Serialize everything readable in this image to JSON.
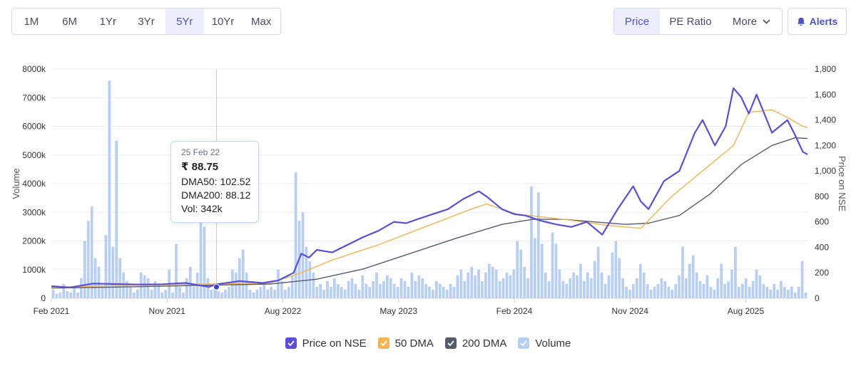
{
  "range_buttons": [
    "1M",
    "6M",
    "1Yr",
    "3Yr",
    "5Yr",
    "10Yr",
    "Max"
  ],
  "active_range": "5Yr",
  "view_tabs": {
    "price": "Price",
    "pe_ratio": "PE Ratio",
    "more": "More"
  },
  "alerts_label": "Alerts",
  "tooltip": {
    "date": "25 Feb 22",
    "price": "₹ 88.75",
    "dma50": "DMA50: 102.52",
    "dma200": "DMA200: 88.12",
    "vol": "Vol: 342k"
  },
  "legend": [
    {
      "label": "Price on NSE",
      "color": "#5a4fd6"
    },
    {
      "label": "50 DMA",
      "color": "#f2b552"
    },
    {
      "label": "200 DMA",
      "color": "#555c6b"
    },
    {
      "label": "Volume",
      "color": "#b8cff5"
    }
  ],
  "chart_data": {
    "type": "line",
    "xlabel": "",
    "ylabel_left": "Volume",
    "ylabel_right": "Price on NSE",
    "x_ticks": [
      "Feb 2021",
      "Nov 2021",
      "Aug 2022",
      "May 2023",
      "Feb 2024",
      "Nov 2024",
      "Aug 2025"
    ],
    "y_left_ticks": [
      "0",
      "1000k",
      "2000k",
      "3000k",
      "4000k",
      "5000k",
      "6000k",
      "7000k",
      "8000k"
    ],
    "y_right_ticks": [
      "0",
      "200",
      "400",
      "600",
      "800",
      "1,000",
      "1,200",
      "1,400",
      "1,600",
      "1,800"
    ],
    "y_left_range": [
      0,
      8000
    ],
    "y_right_range": [
      0,
      1800
    ],
    "x_range": [
      2021.08,
      2025.98
    ],
    "grid": true,
    "legend_position": "bottom",
    "series": [
      {
        "name": "Price on NSE",
        "axis": "right",
        "color": "#5a4fd6",
        "x": [
          2021.08,
          2021.2,
          2021.35,
          2021.5,
          2021.65,
          2021.8,
          2021.95,
          2022.1,
          2022.15,
          2022.3,
          2022.45,
          2022.55,
          2022.65,
          2022.7,
          2022.75,
          2022.8,
          2022.9,
          2023.0,
          2023.1,
          2023.2,
          2023.3,
          2023.38,
          2023.45,
          2023.55,
          2023.65,
          2023.75,
          2023.85,
          2023.9,
          2024.0,
          2024.08,
          2024.15,
          2024.25,
          2024.35,
          2024.45,
          2024.55,
          2024.65,
          2024.75,
          2024.85,
          2024.9,
          2024.95,
          2025.05,
          2025.15,
          2025.25,
          2025.3,
          2025.38,
          2025.45,
          2025.5,
          2025.55,
          2025.6,
          2025.65,
          2025.75,
          2025.85,
          2025.9,
          2025.95,
          2025.98
        ],
        "y": [
          95,
          85,
          115,
          112,
          108,
          110,
          120,
          88.75,
          110,
          135,
          120,
          140,
          200,
          350,
          320,
          380,
          360,
          420,
          480,
          530,
          600,
          590,
          620,
          660,
          700,
          780,
          840,
          800,
          700,
          660,
          650,
          610,
          580,
          560,
          600,
          500,
          700,
          880,
          760,
          700,
          920,
          1000,
          1300,
          1400,
          1200,
          1350,
          1650,
          1580,
          1450,
          1600,
          1300,
          1400,
          1280,
          1150,
          1130
        ]
      },
      {
        "name": "50 DMA",
        "axis": "right",
        "color": "#f2b552",
        "x": [
          2021.08,
          2021.5,
          2022.0,
          2022.5,
          2022.7,
          2022.9,
          2023.2,
          2023.5,
          2023.8,
          2023.9,
          2024.1,
          2024.4,
          2024.7,
          2024.9,
          2025.1,
          2025.3,
          2025.5,
          2025.6,
          2025.75,
          2025.85,
          2025.95,
          2025.98
        ],
        "y": [
          85,
          100,
          110,
          120,
          200,
          300,
          420,
          560,
          700,
          740,
          660,
          620,
          570,
          550,
          800,
          1000,
          1200,
          1460,
          1480,
          1420,
          1350,
          1340
        ]
      },
      {
        "name": "200 DMA",
        "axis": "right",
        "color": "#555c6b",
        "x": [
          2021.08,
          2021.5,
          2022.0,
          2022.5,
          2022.8,
          2023.1,
          2023.4,
          2023.7,
          2024.0,
          2024.2,
          2024.4,
          2024.6,
          2024.8,
          2024.95,
          2025.15,
          2025.35,
          2025.55,
          2025.75,
          2025.9,
          2025.98
        ],
        "y": [
          80,
          88,
          100,
          112,
          150,
          230,
          350,
          470,
          580,
          620,
          620,
          600,
          580,
          590,
          650,
          820,
          1050,
          1200,
          1260,
          1255
        ]
      }
    ],
    "volume": {
      "name": "Volume",
      "axis": "left",
      "color": "#b8cff5",
      "x_range": [
        2021.08,
        2025.98
      ],
      "values": [
        300,
        150,
        200,
        500,
        250,
        200,
        400,
        200,
        700,
        2000,
        2700,
        3200,
        1400,
        1100,
        400,
        2200,
        7600,
        1800,
        5500,
        1400,
        900,
        600,
        400,
        200,
        300,
        900,
        800,
        700,
        300,
        600,
        500,
        200,
        300,
        1000,
        200,
        1900,
        400,
        200,
        700,
        1100,
        400,
        900,
        2900,
        2500,
        700,
        300,
        400,
        250,
        200,
        300,
        400,
        1000,
        900,
        1400,
        1700,
        900,
        300,
        200,
        300,
        400,
        500,
        300,
        400,
        300,
        1000,
        600,
        300,
        400,
        800,
        4400,
        2700,
        3000,
        1800,
        1300,
        900,
        400,
        500,
        300,
        600,
        400,
        700,
        500,
        400,
        300,
        600,
        700,
        500,
        300,
        800,
        500,
        400,
        600,
        900,
        500,
        600,
        800,
        700,
        500,
        400,
        700,
        600,
        400,
        900,
        600,
        800,
        700,
        500,
        400,
        300,
        600,
        500,
        400,
        300,
        500,
        400,
        800,
        1000,
        600,
        900,
        1100,
        800,
        1000,
        600,
        900,
        1200,
        1100,
        1000,
        600,
        700,
        900,
        800,
        1000,
        2000,
        1700,
        1100,
        700,
        3900,
        2100,
        3700,
        1900,
        900,
        600,
        2300,
        1900,
        1000,
        600,
        500,
        700,
        900,
        800,
        1200,
        600,
        900,
        700,
        1300,
        1800,
        900,
        500,
        800,
        1600,
        2000,
        1400,
        700,
        400,
        300,
        500,
        700,
        1200,
        900,
        500,
        300,
        400,
        500,
        700,
        600,
        400,
        300,
        500,
        800,
        1800,
        700,
        1200,
        1500,
        900,
        600,
        500,
        800,
        400,
        300,
        700,
        1200,
        500,
        600,
        1000,
        1800,
        400,
        500,
        700,
        400,
        600,
        1000,
        800,
        500,
        400,
        300,
        500,
        300,
        600,
        400,
        300,
        400,
        200,
        400,
        1300,
        200
      ]
    },
    "highlighted_point": {
      "x": "25 Feb 22",
      "price": 88.75,
      "dma50": 102.52,
      "dma200": 88.12,
      "volume": "342k"
    }
  }
}
